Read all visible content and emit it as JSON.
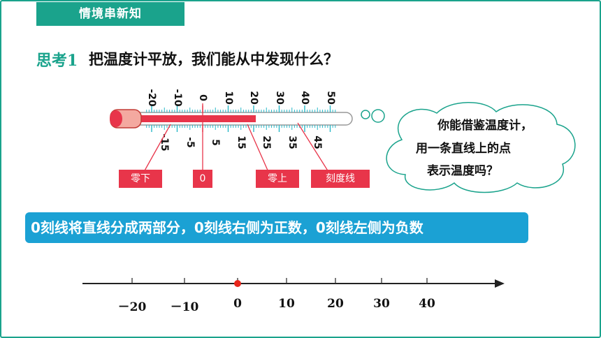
{
  "header": {
    "tag": "情境串新知"
  },
  "question": {
    "label": "思考1",
    "text": "把温度计平放，我们能从中发现什么？"
  },
  "thermometer": {
    "top_ticks": [
      "-20",
      "-10",
      "0",
      "10",
      "20",
      "30",
      "40",
      "50"
    ],
    "bottom_ticks": [
      "-15",
      "-5",
      "5",
      "15",
      "25",
      "35",
      "45"
    ],
    "labels": {
      "below_zero": "零下",
      "zero": "0",
      "above_zero": "零上",
      "scale_line": "刻度线"
    }
  },
  "cloud": {
    "line1": "你能借鉴温度计，",
    "line2": "用一条直线上的点",
    "line3": "表示温度吗？"
  },
  "banner": {
    "text": "0刻线将直线分成两部分，0刻线右侧为正数，0刻线左侧为负数"
  },
  "number_line": {
    "labels": [
      "－20",
      "－10",
      "0",
      "10",
      "20",
      "30",
      "40"
    ]
  },
  "colors": {
    "accent": "#1aa38c",
    "banner": "#1ba1d4",
    "label_red": "#e8354a",
    "thermo_red": "#e8354a"
  }
}
